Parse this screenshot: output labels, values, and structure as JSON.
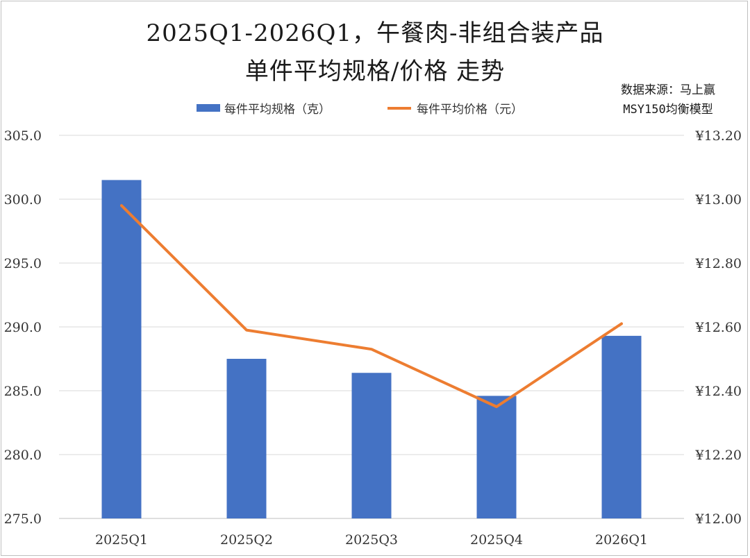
{
  "title_line1": "2025Q1-2026Q1，午餐肉-非组合装产品",
  "title_line2": "单件平均规格/价格 走势",
  "source_line1": "数据来源：马上赢",
  "source_line2": "MSY150均衡模型",
  "colors": {
    "bar": "#4472C4",
    "line": "#ED7D31",
    "grid": "#d9d9d9"
  },
  "chart_data": {
    "type": "bar",
    "categories": [
      "2025Q1",
      "2025Q2",
      "2025Q3",
      "2025Q4",
      "2026Q1"
    ],
    "series": [
      {
        "name": "每件平均规格（克）",
        "type": "bar",
        "axis": "left",
        "values": [
          301.5,
          287.5,
          286.4,
          284.6,
          289.3
        ]
      },
      {
        "name": "每件平均价格（元）",
        "type": "line",
        "axis": "right",
        "values": [
          12.98,
          12.59,
          12.53,
          12.35,
          12.61
        ]
      }
    ],
    "left_axis": {
      "min": 275,
      "max": 305,
      "ticks": [
        "275.0",
        "280.0",
        "285.0",
        "290.0",
        "295.0",
        "300.0",
        "305.0"
      ]
    },
    "right_axis": {
      "min": 12.0,
      "max": 13.2,
      "ticks": [
        "¥12.00",
        "¥12.20",
        "¥12.40",
        "¥12.60",
        "¥12.80",
        "¥13.00",
        "¥13.20"
      ]
    },
    "grid": true,
    "legend_position": "top"
  }
}
